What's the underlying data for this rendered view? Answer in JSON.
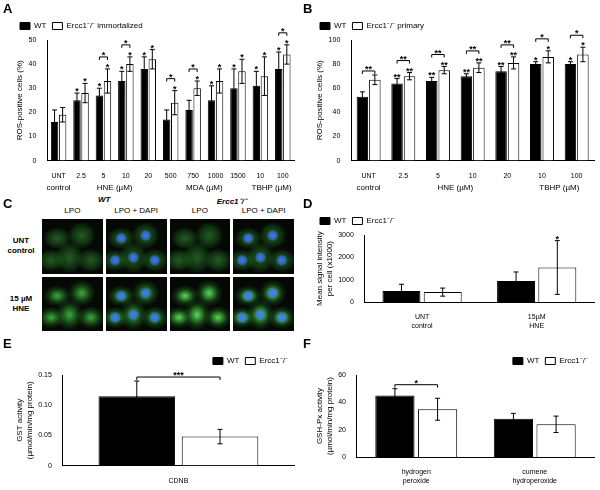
{
  "chart_data": [
    {
      "panel": "A",
      "type": "bar",
      "y_label": "ROS-positive cells (%)",
      "categories": [
        "UNT",
        "2.5",
        "5",
        "10",
        "20",
        "500",
        "750",
        "1000",
        "1500",
        "10",
        "100"
      ],
      "groups": [
        {
          "label": "control",
          "from": 0,
          "to": 0
        },
        {
          "label": "HNE (µM)",
          "from": 1,
          "to": 4
        },
        {
          "label": "MDA (µM)",
          "from": 5,
          "to": 8
        },
        {
          "label": "TBHP (µM)",
          "from": 9,
          "to": 10
        }
      ],
      "series": [
        {
          "name": "WT",
          "color": "#000000",
          "values": [
            16,
            25,
            27,
            33,
            38,
            17,
            21,
            25,
            30,
            31,
            38
          ],
          "errors": [
            5,
            3,
            3,
            4,
            5,
            4,
            4,
            6,
            8,
            6,
            7
          ],
          "stars": [
            null,
            "*",
            "*",
            "*",
            "*",
            null,
            null,
            "*",
            "*",
            "*",
            "*"
          ]
        },
        {
          "name": "Ercc1⁻/⁻ immortalized",
          "color": "#ffffff",
          "values": [
            19,
            28,
            33,
            40,
            42,
            24,
            30,
            33,
            37,
            35,
            44
          ],
          "errors": [
            3,
            4,
            5,
            3,
            4,
            5,
            3,
            5,
            5,
            8,
            4
          ],
          "stars": [
            null,
            "*",
            "*",
            "*",
            "*",
            "*",
            "*",
            "*",
            "*",
            "*",
            "*"
          ]
        }
      ],
      "comparisons": [
        {
          "index": 2,
          "label": "*"
        },
        {
          "index": 3,
          "label": "*"
        },
        {
          "index": 5,
          "label": "*"
        },
        {
          "index": 6,
          "label": "*"
        },
        {
          "index": 10,
          "label": "*"
        }
      ],
      "ylim": [
        0,
        50
      ],
      "yticks": [
        0,
        10,
        20,
        30,
        40,
        50
      ],
      "grid": false,
      "legend": "top-left"
    },
    {
      "panel": "B",
      "type": "bar",
      "y_label": "ROS-positive cells (%)",
      "categories": [
        "UNT",
        "2.5",
        "5",
        "10",
        "20",
        "10",
        "100"
      ],
      "groups": [
        {
          "label": "control",
          "from": 0,
          "to": 0
        },
        {
          "label": "HNE (µM)",
          "from": 1,
          "to": 4
        },
        {
          "label": "TBHP (µM)",
          "from": 5,
          "to": 6
        }
      ],
      "series": [
        {
          "name": "WT",
          "color": "#000000",
          "values": [
            53,
            64,
            66,
            70,
            74,
            80,
            80
          ],
          "errors": [
            4,
            4,
            3,
            2,
            4,
            2,
            2
          ],
          "stars": [
            null,
            "**",
            "**",
            "**",
            "**",
            "*",
            "*"
          ]
        },
        {
          "name": "Ercc1⁻/⁻ primary",
          "color": "#ffffff",
          "values": [
            67,
            70,
            75,
            77,
            81,
            86,
            88
          ],
          "errors": [
            4,
            3,
            3,
            4,
            5,
            5,
            6
          ],
          "stars": [
            null,
            "**",
            "**",
            "**",
            "**",
            "*",
            "*"
          ]
        }
      ],
      "comparisons": [
        {
          "index": 0,
          "label": "**"
        },
        {
          "index": 1,
          "label": "**"
        },
        {
          "index": 2,
          "label": "**"
        },
        {
          "index": 3,
          "label": "**"
        },
        {
          "index": 4,
          "label": "**"
        },
        {
          "index": 5,
          "label": "*"
        },
        {
          "index": 6,
          "label": "*"
        }
      ],
      "ylim": [
        0,
        100
      ],
      "yticks": [
        0,
        20,
        40,
        60,
        80,
        100
      ],
      "grid": false,
      "legend": "top-left"
    },
    {
      "panel": "D",
      "type": "bar",
      "y_label": "Mean signal intensity per cell (x1000)",
      "categories": [
        "UNT control",
        "15µM HNE"
      ],
      "series": [
        {
          "name": "WT",
          "color": "#000000",
          "values": [
            500,
            950
          ],
          "errors": [
            300,
            400
          ],
          "stars": [
            null,
            null
          ]
        },
        {
          "name": "Ercc1⁻/⁻",
          "color": "#ffffff",
          "values": [
            450,
            1550
          ],
          "errors": [
            180,
            1200
          ],
          "stars": [
            null,
            "*"
          ]
        }
      ],
      "ylim": [
        0,
        3000
      ],
      "yticks": [
        0,
        1000,
        2000,
        3000
      ],
      "grid": false,
      "legend": "top-left"
    },
    {
      "panel": "E",
      "type": "bar",
      "y_label": "GST activity (µmol/min/mg protein)",
      "categories": [
        "CDNB"
      ],
      "series": [
        {
          "name": "WT",
          "color": "#000000",
          "values": [
            0.115
          ],
          "errors": [
            0.025
          ],
          "stars": [
            null
          ]
        },
        {
          "name": "Ercc1⁻/⁻",
          "color": "#ffffff",
          "values": [
            0.048
          ],
          "errors": [
            0.012
          ],
          "stars": [
            null
          ]
        }
      ],
      "comparisons": [
        {
          "index": 0,
          "label": "***"
        }
      ],
      "ylim": [
        0,
        0.15
      ],
      "yticks": [
        0,
        0.05,
        {
          "value": 0.1,
          "label": "0.10"
        },
        0.15
      ],
      "grid": false,
      "legend": "top-right"
    },
    {
      "panel": "F",
      "type": "bar",
      "y_label": "GSH-Px activity (µmol/min/mg protein)",
      "categories": [
        "hydrogen peroxide",
        "cumene hydroperoxide"
      ],
      "series": [
        {
          "name": "WT",
          "color": "#000000",
          "values": [
            45,
            28
          ],
          "errors": [
            5,
            4
          ],
          "stars": [
            null,
            null
          ]
        },
        {
          "name": "Ercc1⁻/⁻",
          "color": "#ffffff",
          "values": [
            35,
            24
          ],
          "errors": [
            8,
            6
          ],
          "stars": [
            null,
            null
          ]
        }
      ],
      "comparisons": [
        {
          "index": 0,
          "label": "*"
        }
      ],
      "ylim": [
        0,
        60
      ],
      "yticks": [
        0,
        20,
        40,
        60
      ],
      "grid": false,
      "legend": "top-right"
    }
  ],
  "micrograph": {
    "panel": "C",
    "groups": [
      {
        "label": "WT",
        "columns": [
          "LPO",
          "LPO + DAPI"
        ]
      },
      {
        "label": "Ercc1⁻/⁻",
        "columns": [
          "LPO",
          "LPO + DAPI"
        ]
      }
    ],
    "rows": [
      "UNT control",
      "15 µM HNE"
    ]
  }
}
